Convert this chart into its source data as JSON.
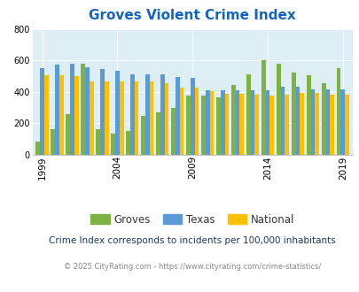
{
  "title": "Groves Violent Crime Index",
  "subtitle": "Crime Index corresponds to incidents per 100,000 inhabitants",
  "footer": "© 2025 CityRating.com - https://www.cityrating.com/crime-statistics/",
  "years": [
    1999,
    2000,
    2001,
    2002,
    2003,
    2004,
    2005,
    2006,
    2007,
    2008,
    2009,
    2010,
    2011,
    2012,
    2013,
    2014,
    2015,
    2016,
    2017,
    2018,
    2019
  ],
  "groves": [
    85,
    160,
    260,
    580,
    165,
    135,
    150,
    250,
    270,
    300,
    375,
    375,
    365,
    445,
    510,
    605,
    580,
    525,
    505,
    455,
    550
  ],
  "texas": [
    550,
    575,
    580,
    555,
    545,
    535,
    515,
    510,
    510,
    495,
    490,
    410,
    410,
    410,
    410,
    410,
    435,
    435,
    415,
    415,
    415
  ],
  "national": [
    505,
    505,
    500,
    470,
    465,
    465,
    470,
    465,
    455,
    425,
    430,
    405,
    390,
    390,
    380,
    375,
    385,
    395,
    395,
    385,
    385
  ],
  "groves_color": "#7cb342",
  "texas_color": "#5b9bd5",
  "national_color": "#ffc000",
  "bg_color": "#deeef5",
  "ylim": [
    0,
    800
  ],
  "yticks": [
    0,
    200,
    400,
    600,
    800
  ],
  "xtick_years": [
    1999,
    2004,
    2009,
    2014,
    2019
  ],
  "title_color": "#1565c0",
  "subtitle_color": "#1a3a5c",
  "footer_color": "#888888",
  "legend_text_color": "#333333"
}
